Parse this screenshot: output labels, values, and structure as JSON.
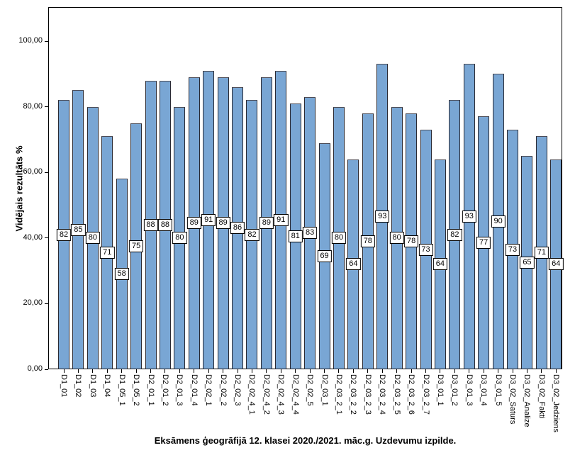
{
  "chart_data": {
    "type": "bar",
    "title": "Eksāmens ģeogrāfijā 12. klasei 2020./2021. māc.g. Uzdevumu izpilde.",
    "xlabel": "",
    "ylabel": "Vidējais rezultāts %",
    "ylim": [
      0,
      110
    ],
    "grid": false,
    "legend": "none",
    "bar_fill_color": "#79A6D4",
    "bar_border_color": "#2A2A33",
    "value_label_box_bg": "#FFFFFF",
    "value_label_box_border": "#000000",
    "yticks": [
      {
        "value": 0,
        "label": "0,00"
      },
      {
        "value": 20,
        "label": "20,00"
      },
      {
        "value": 40,
        "label": "40,00"
      },
      {
        "value": 60,
        "label": "60,00"
      },
      {
        "value": 80,
        "label": "80,00"
      },
      {
        "value": 100,
        "label": "100,00"
      }
    ],
    "categories": [
      "D1_01",
      "D1_02",
      "D1_03",
      "D1_04",
      "D1_05_1",
      "D1_05_2",
      "D2_01_1",
      "D2_01_2",
      "D2_01_3",
      "D2_01_4",
      "D2_02_1",
      "D2_02_2",
      "D2_02_3",
      "D2_02_4_1",
      "D2_02_4_2",
      "D2_02_4_3",
      "D2_02_4_4",
      "D2_02_5",
      "D2_03_1",
      "D2_03_2_1",
      "D2_03_2_2",
      "D2_03_2_3",
      "D2_03_2_4",
      "D2_03_2_5",
      "D2_03_2_6",
      "D2_03_2_7",
      "D3_01_1",
      "D3_01_2",
      "D3_01_3",
      "D3_01_4",
      "D3_01_5",
      "D3_02_Saturs",
      "D3_02_Analize",
      "D3_02_Fakti",
      "D3_02_Jedziens"
    ],
    "values": [
      82,
      85,
      80,
      71,
      58,
      75,
      88,
      88,
      80,
      89,
      91,
      89,
      86,
      82,
      89,
      91,
      81,
      83,
      69,
      80,
      64,
      78,
      93,
      80,
      78,
      73,
      64,
      82,
      93,
      77,
      90,
      73,
      65,
      71,
      64
    ]
  }
}
